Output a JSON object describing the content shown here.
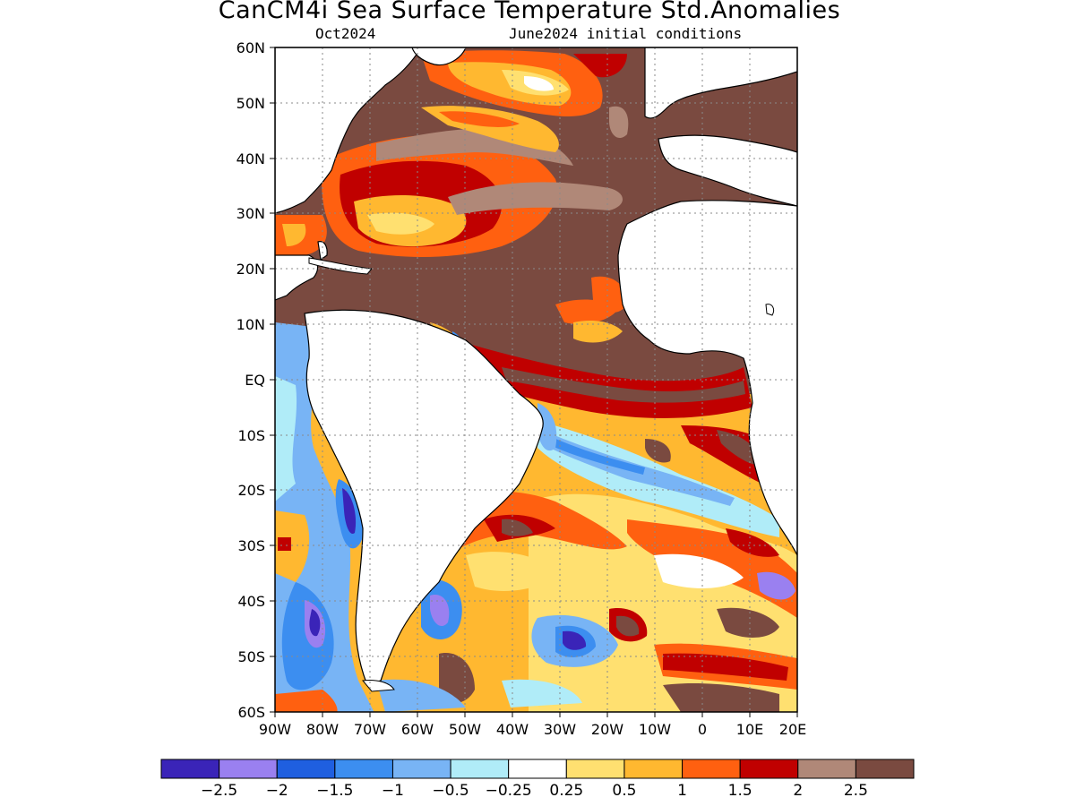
{
  "title": "CanCM4i Sea Surface Temperature Std.Anomalies",
  "subtitle_left": "Oct2024",
  "subtitle_right": "June2024 initial conditions",
  "lat_labels": [
    "60N",
    "50N",
    "40N",
    "30N",
    "20N",
    "10N",
    "EQ",
    "10S",
    "20S",
    "30S",
    "40S",
    "50S",
    "60S"
  ],
  "lon_labels": [
    "90W",
    "80W",
    "70W",
    "60W",
    "50W",
    "40W",
    "30W",
    "20W",
    "10W",
    "0",
    "10E",
    "20E"
  ],
  "colorbar": {
    "colors": [
      "#3a24b8",
      "#9a80f0",
      "#1f5fe0",
      "#3c8ef0",
      "#78b4f5",
      "#b0ecf8",
      "#ffffff",
      "#ffe070",
      "#ffb830",
      "#ff6010",
      "#c00000",
      "#b08878",
      "#7a4a40"
    ],
    "labels": [
      "−2.5",
      "−2",
      "−1.5",
      "−1",
      "−0.5",
      "−0.25",
      "0.25",
      "0.5",
      "1",
      "1.5",
      "2",
      "2.5"
    ]
  },
  "palette": {
    "land": "#ffffff",
    "deep_brown": "#7a4a40",
    "light_brown": "#b08878",
    "dark_red": "#c00000",
    "red_orange": "#ff6010",
    "orange": "#ffb830",
    "yellow": "#ffe070",
    "light_cyan": "#b0ecf8",
    "light_blue": "#78b4f5",
    "mid_blue": "#3c8ef0",
    "blue": "#1f5fe0",
    "lavender": "#9a80f0",
    "indigo": "#3a24b8"
  }
}
